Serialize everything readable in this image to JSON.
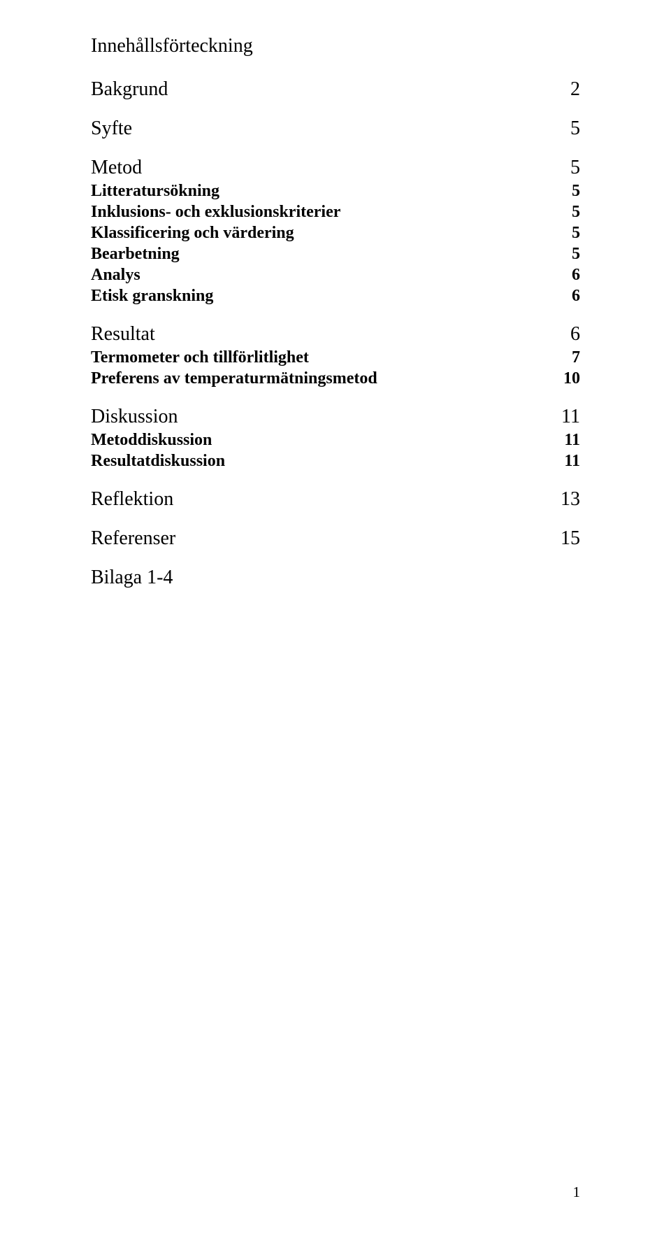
{
  "title": "Innehållsförteckning",
  "entries": {
    "bakgrund": {
      "label": "Bakgrund",
      "page": "2"
    },
    "syfte": {
      "label": "Syfte",
      "page": "5"
    },
    "metod": {
      "label": "Metod",
      "page": "5",
      "subs": {
        "litteratur": {
          "label": "Litteratursökning",
          "page": "5"
        },
        "inklusion": {
          "label": "Inklusions- och exklusionskriterier",
          "page": "5"
        },
        "klassif": {
          "label": "Klassificering och värdering",
          "page": "5"
        },
        "bearbetning": {
          "label": "Bearbetning",
          "page": "5"
        },
        "analys": {
          "label": "Analys",
          "page": "6"
        },
        "etisk": {
          "label": "Etisk granskning",
          "page": "6"
        }
      }
    },
    "resultat": {
      "label": "Resultat",
      "page": "6",
      "subs": {
        "termometer": {
          "label": "Termometer och tillförlitlighet",
          "page": "7"
        },
        "preferens": {
          "label": "Preferens av temperaturmätningsmetod",
          "page": "10"
        }
      }
    },
    "diskussion": {
      "label": "Diskussion",
      "page": "11",
      "subs": {
        "metoddisk": {
          "label": "Metoddiskussion",
          "page": "11"
        },
        "resultatdisk": {
          "label": "Resultatdiskussion",
          "page": "11"
        }
      }
    },
    "reflektion": {
      "label": "Reflektion",
      "page": "13"
    },
    "referenser": {
      "label": "Referenser",
      "page": "15"
    },
    "bilaga": {
      "label": "Bilaga 1-4"
    }
  },
  "page_number": "1"
}
